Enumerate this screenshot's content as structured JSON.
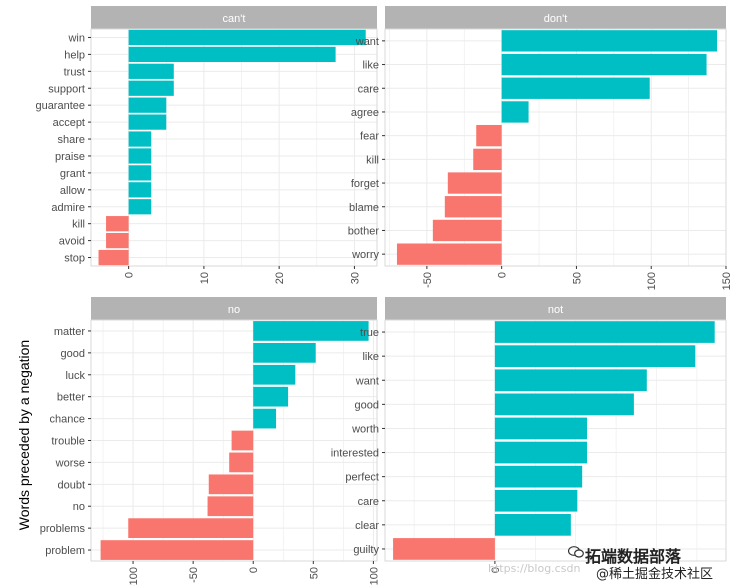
{
  "y_axis_label": "Words preceded by a negation",
  "colors": {
    "positive": "#00BFC4",
    "negative": "#F8766D",
    "strip": "#B3B3B3",
    "grid": "#EBEBEB",
    "border": "#D9D9D9"
  },
  "watermark": {
    "main": "拓端数据部落",
    "sub": "@稀土掘金技术社区",
    "url": "https://blog.csdn",
    "icon": "wechat-icon"
  },
  "chart_data": [
    {
      "type": "bar",
      "orientation": "horizontal",
      "panel": "can't",
      "categories": [
        "win",
        "help",
        "trust",
        "support",
        "guarantee",
        "accept",
        "share",
        "praise",
        "grant",
        "allow",
        "admire",
        "kill",
        "avoid",
        "stop"
      ],
      "values": [
        31.5,
        27.5,
        6,
        6,
        5,
        5,
        3,
        3,
        3,
        3,
        3,
        -3,
        -3,
        -4
      ],
      "xlim": [
        -5,
        33
      ],
      "xticks": [
        0,
        10,
        20,
        30
      ],
      "grid": true
    },
    {
      "type": "bar",
      "orientation": "horizontal",
      "panel": "don't",
      "categories": [
        "want",
        "like",
        "care",
        "agree",
        "fear",
        "kill",
        "forget",
        "blame",
        "bother",
        "worry"
      ],
      "values": [
        144,
        137,
        99,
        18,
        -17,
        -19,
        -36,
        -38,
        -46,
        -70
      ],
      "xlim": [
        -78,
        150
      ],
      "xticks": [
        -50,
        0,
        50,
        100,
        150
      ],
      "grid": true
    },
    {
      "type": "bar",
      "orientation": "horizontal",
      "panel": "no",
      "categories": [
        "matter",
        "good",
        "luck",
        "better",
        "chance",
        "trouble",
        "worse",
        "doubt",
        "no",
        "problems",
        "problem"
      ],
      "values": [
        96,
        52,
        35,
        29,
        19,
        -18,
        -20,
        -37,
        -38,
        -104,
        -127
      ],
      "xlim": [
        -135,
        103
      ],
      "xticks": [
        -100,
        -50,
        0,
        50,
        100
      ],
      "grid": true
    },
    {
      "type": "bar",
      "orientation": "horizontal",
      "panel": "not",
      "categories": [
        "true",
        "like",
        "want",
        "good",
        "worth",
        "interested",
        "perfect",
        "care",
        "clear",
        "guilty"
      ],
      "values": [
        136,
        124,
        94,
        86,
        57,
        57,
        54,
        51,
        47,
        -63
      ],
      "xlim": [
        -68,
        143
      ],
      "xticks": [
        0
      ],
      "grid": true
    }
  ]
}
